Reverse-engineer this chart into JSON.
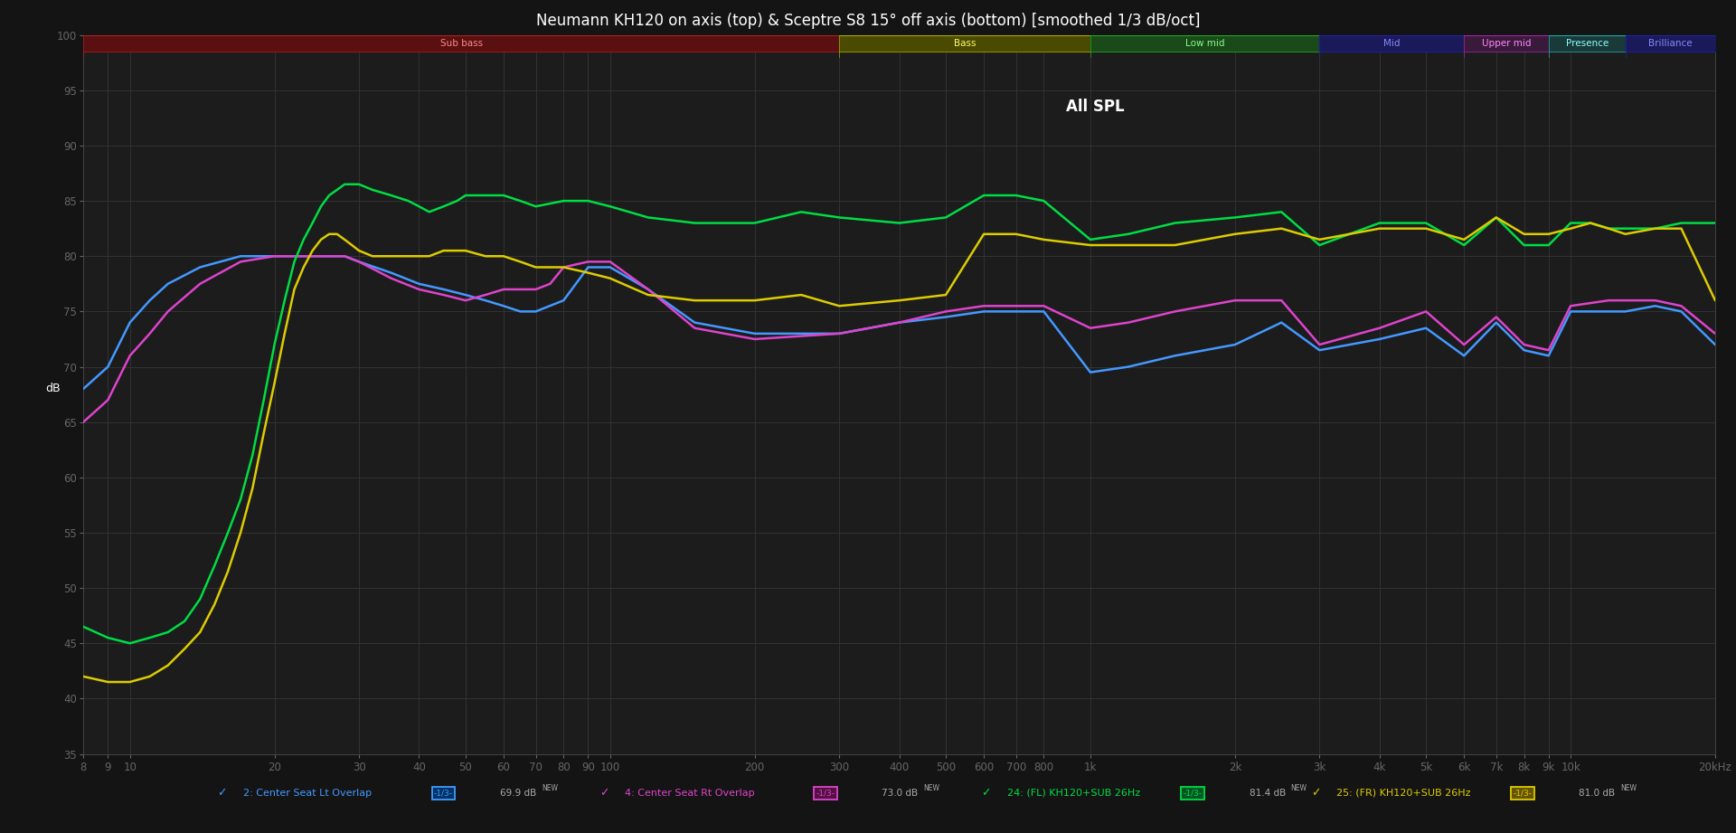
{
  "title": "Neumann KH120 on axis (top) & Sceptre S8 15° off axis (bottom) [smoothed 1/3 dB/oct]",
  "subtitle": "All SPL",
  "background_color": "#141414",
  "plot_bg_color": "#1c1c1c",
  "grid_color": "#363636",
  "text_color": "#ffffff",
  "ylim": [
    35,
    100
  ],
  "yticks": [
    35,
    40,
    45,
    50,
    55,
    60,
    65,
    70,
    75,
    80,
    85,
    90,
    95,
    100
  ],
  "ylabel": "dB",
  "band_boundaries": [
    8,
    300,
    1000,
    3000,
    6000,
    9000,
    13000,
    20000
  ],
  "band_names": [
    "Sub bass",
    "Bass",
    "Low mid",
    "Mid",
    "Upper mid",
    "Presence",
    "Brilliance"
  ],
  "band_bg_colors": [
    "#5a1010",
    "#4a4a00",
    "#1a4a1a",
    "#1a1a5a",
    "#3a1a3a",
    "#1a3a3a",
    "#1a1a5a"
  ],
  "band_border_colors": [
    "#aa2222",
    "#aaaa00",
    "#22aa22",
    "#2222aa",
    "#aa22aa",
    "#22aaaa",
    "#2222aa"
  ],
  "band_text_colors": [
    "#ff8888",
    "#ffff66",
    "#88ff88",
    "#8888ff",
    "#ff88ff",
    "#88ffff",
    "#8888ff"
  ],
  "lines": [
    {
      "name": "2: Center Seat Lt Overlap",
      "color": "#4499ff",
      "linewidth": 1.8,
      "points": [
        [
          8,
          68
        ],
        [
          9,
          70
        ],
        [
          10,
          74
        ],
        [
          11,
          76
        ],
        [
          12,
          77.5
        ],
        [
          14,
          79
        ],
        [
          17,
          80
        ],
        [
          20,
          80
        ],
        [
          25,
          80
        ],
        [
          28,
          80
        ],
        [
          30,
          79.5
        ],
        [
          35,
          78.5
        ],
        [
          40,
          77.5
        ],
        [
          45,
          77
        ],
        [
          50,
          76.5
        ],
        [
          55,
          76
        ],
        [
          60,
          75.5
        ],
        [
          65,
          75
        ],
        [
          70,
          75
        ],
        [
          80,
          76
        ],
        [
          90,
          79
        ],
        [
          100,
          79
        ],
        [
          120,
          77
        ],
        [
          150,
          74
        ],
        [
          200,
          73
        ],
        [
          300,
          73
        ],
        [
          400,
          74
        ],
        [
          500,
          74.5
        ],
        [
          600,
          75
        ],
        [
          700,
          75
        ],
        [
          800,
          75
        ],
        [
          1000,
          69.5
        ],
        [
          1200,
          70
        ],
        [
          1500,
          71
        ],
        [
          2000,
          72
        ],
        [
          2500,
          74
        ],
        [
          3000,
          71.5
        ],
        [
          4000,
          72.5
        ],
        [
          5000,
          73.5
        ],
        [
          6000,
          71
        ],
        [
          7000,
          74
        ],
        [
          8000,
          71.5
        ],
        [
          9000,
          71
        ],
        [
          10000,
          75
        ],
        [
          12000,
          75
        ],
        [
          13000,
          75
        ],
        [
          15000,
          75.5
        ],
        [
          17000,
          75
        ],
        [
          20000,
          72
        ]
      ]
    },
    {
      "name": "4: Center Seat Rt Overlap",
      "color": "#dd44cc",
      "linewidth": 1.8,
      "points": [
        [
          8,
          65
        ],
        [
          9,
          67
        ],
        [
          10,
          71
        ],
        [
          11,
          73
        ],
        [
          12,
          75
        ],
        [
          14,
          77.5
        ],
        [
          17,
          79.5
        ],
        [
          20,
          80
        ],
        [
          25,
          80
        ],
        [
          28,
          80
        ],
        [
          30,
          79.5
        ],
        [
          35,
          78
        ],
        [
          40,
          77
        ],
        [
          45,
          76.5
        ],
        [
          50,
          76
        ],
        [
          55,
          76.5
        ],
        [
          60,
          77
        ],
        [
          65,
          77
        ],
        [
          70,
          77
        ],
        [
          75,
          77.5
        ],
        [
          80,
          79
        ],
        [
          90,
          79.5
        ],
        [
          100,
          79.5
        ],
        [
          120,
          77
        ],
        [
          150,
          73.5
        ],
        [
          200,
          72.5
        ],
        [
          300,
          73
        ],
        [
          400,
          74
        ],
        [
          500,
          75
        ],
        [
          600,
          75.5
        ],
        [
          700,
          75.5
        ],
        [
          800,
          75.5
        ],
        [
          1000,
          73.5
        ],
        [
          1200,
          74
        ],
        [
          1500,
          75
        ],
        [
          2000,
          76
        ],
        [
          2500,
          76
        ],
        [
          3000,
          72
        ],
        [
          4000,
          73.5
        ],
        [
          5000,
          75
        ],
        [
          6000,
          72
        ],
        [
          7000,
          74.5
        ],
        [
          8000,
          72
        ],
        [
          9000,
          71.5
        ],
        [
          10000,
          75.5
        ],
        [
          12000,
          76
        ],
        [
          13000,
          76
        ],
        [
          15000,
          76
        ],
        [
          17000,
          75.5
        ],
        [
          20000,
          73
        ]
      ]
    },
    {
      "name": "24: (FL) KH120+SUB 26Hz",
      "color": "#00dd44",
      "linewidth": 1.8,
      "points": [
        [
          8,
          46.5
        ],
        [
          9,
          45.5
        ],
        [
          10,
          45
        ],
        [
          11,
          45.5
        ],
        [
          12,
          46
        ],
        [
          13,
          47
        ],
        [
          14,
          49
        ],
        [
          15,
          52
        ],
        [
          16,
          55
        ],
        [
          17,
          58
        ],
        [
          18,
          62
        ],
        [
          19,
          67
        ],
        [
          20,
          72
        ],
        [
          21,
          76
        ],
        [
          22,
          79.5
        ],
        [
          23,
          81.5
        ],
        [
          24,
          83
        ],
        [
          25,
          84.5
        ],
        [
          26,
          85.5
        ],
        [
          27,
          86
        ],
        [
          28,
          86.5
        ],
        [
          29,
          86.5
        ],
        [
          30,
          86.5
        ],
        [
          32,
          86
        ],
        [
          35,
          85.5
        ],
        [
          38,
          85
        ],
        [
          40,
          84.5
        ],
        [
          42,
          84
        ],
        [
          45,
          84.5
        ],
        [
          48,
          85
        ],
        [
          50,
          85.5
        ],
        [
          55,
          85.5
        ],
        [
          60,
          85.5
        ],
        [
          65,
          85
        ],
        [
          70,
          84.5
        ],
        [
          80,
          85
        ],
        [
          90,
          85
        ],
        [
          100,
          84.5
        ],
        [
          120,
          83.5
        ],
        [
          150,
          83
        ],
        [
          200,
          83
        ],
        [
          250,
          84
        ],
        [
          300,
          83.5
        ],
        [
          400,
          83
        ],
        [
          500,
          83.5
        ],
        [
          600,
          85.5
        ],
        [
          700,
          85.5
        ],
        [
          800,
          85
        ],
        [
          1000,
          81.5
        ],
        [
          1200,
          82
        ],
        [
          1500,
          83
        ],
        [
          2000,
          83.5
        ],
        [
          2500,
          84
        ],
        [
          3000,
          81
        ],
        [
          4000,
          83
        ],
        [
          5000,
          83
        ],
        [
          6000,
          81
        ],
        [
          7000,
          83.5
        ],
        [
          8000,
          81
        ],
        [
          9000,
          81
        ],
        [
          10000,
          83
        ],
        [
          11000,
          83
        ],
        [
          12000,
          82.5
        ],
        [
          13000,
          82.5
        ],
        [
          15000,
          82.5
        ],
        [
          17000,
          83
        ],
        [
          20000,
          83
        ]
      ]
    },
    {
      "name": "25: (FR) KH120+SUB 26Hz",
      "color": "#ddcc00",
      "linewidth": 1.8,
      "points": [
        [
          8,
          42
        ],
        [
          9,
          41.5
        ],
        [
          10,
          41.5
        ],
        [
          11,
          42
        ],
        [
          12,
          43
        ],
        [
          13,
          44.5
        ],
        [
          14,
          46
        ],
        [
          15,
          48.5
        ],
        [
          16,
          51.5
        ],
        [
          17,
          55
        ],
        [
          18,
          59
        ],
        [
          19,
          64
        ],
        [
          20,
          68.5
        ],
        [
          21,
          73
        ],
        [
          22,
          77
        ],
        [
          23,
          79
        ],
        [
          24,
          80.5
        ],
        [
          25,
          81.5
        ],
        [
          26,
          82
        ],
        [
          27,
          82
        ],
        [
          28,
          81.5
        ],
        [
          29,
          81
        ],
        [
          30,
          80.5
        ],
        [
          32,
          80
        ],
        [
          35,
          80
        ],
        [
          38,
          80
        ],
        [
          40,
          80
        ],
        [
          42,
          80
        ],
        [
          45,
          80.5
        ],
        [
          48,
          80.5
        ],
        [
          50,
          80.5
        ],
        [
          55,
          80
        ],
        [
          60,
          80
        ],
        [
          65,
          79.5
        ],
        [
          70,
          79
        ],
        [
          80,
          79
        ],
        [
          90,
          78.5
        ],
        [
          100,
          78
        ],
        [
          120,
          76.5
        ],
        [
          150,
          76
        ],
        [
          200,
          76
        ],
        [
          250,
          76.5
        ],
        [
          300,
          75.5
        ],
        [
          400,
          76
        ],
        [
          500,
          76.5
        ],
        [
          600,
          82
        ],
        [
          700,
          82
        ],
        [
          800,
          81.5
        ],
        [
          1000,
          81
        ],
        [
          1200,
          81
        ],
        [
          1500,
          81
        ],
        [
          2000,
          82
        ],
        [
          2500,
          82.5
        ],
        [
          3000,
          81.5
        ],
        [
          4000,
          82.5
        ],
        [
          5000,
          82.5
        ],
        [
          6000,
          81.5
        ],
        [
          7000,
          83.5
        ],
        [
          8000,
          82
        ],
        [
          9000,
          82
        ],
        [
          10000,
          82.5
        ],
        [
          11000,
          83
        ],
        [
          12000,
          82.5
        ],
        [
          13000,
          82
        ],
        [
          15000,
          82.5
        ],
        [
          17000,
          82.5
        ],
        [
          20000,
          76
        ]
      ]
    }
  ],
  "legend_items": [
    {
      "label": "2: Center Seat Lt Overlap",
      "color": "#4499ff",
      "box_color": "#003366"
    },
    {
      "label": "4: Center Seat Rt Overlap",
      "color": "#dd44cc",
      "box_color": "#551144"
    },
    {
      "label": "24: (FL) KH120+SUB 26Hz",
      "color": "#00dd44",
      "box_color": "#005522"
    },
    {
      "label": "25: (FR) KH120+SUB 26Hz",
      "color": "#ddcc00",
      "box_color": "#665500"
    }
  ],
  "legend_values": [
    "69.9 dB",
    "73.0 dB",
    "81.4 dB",
    "81.0 dB"
  ]
}
